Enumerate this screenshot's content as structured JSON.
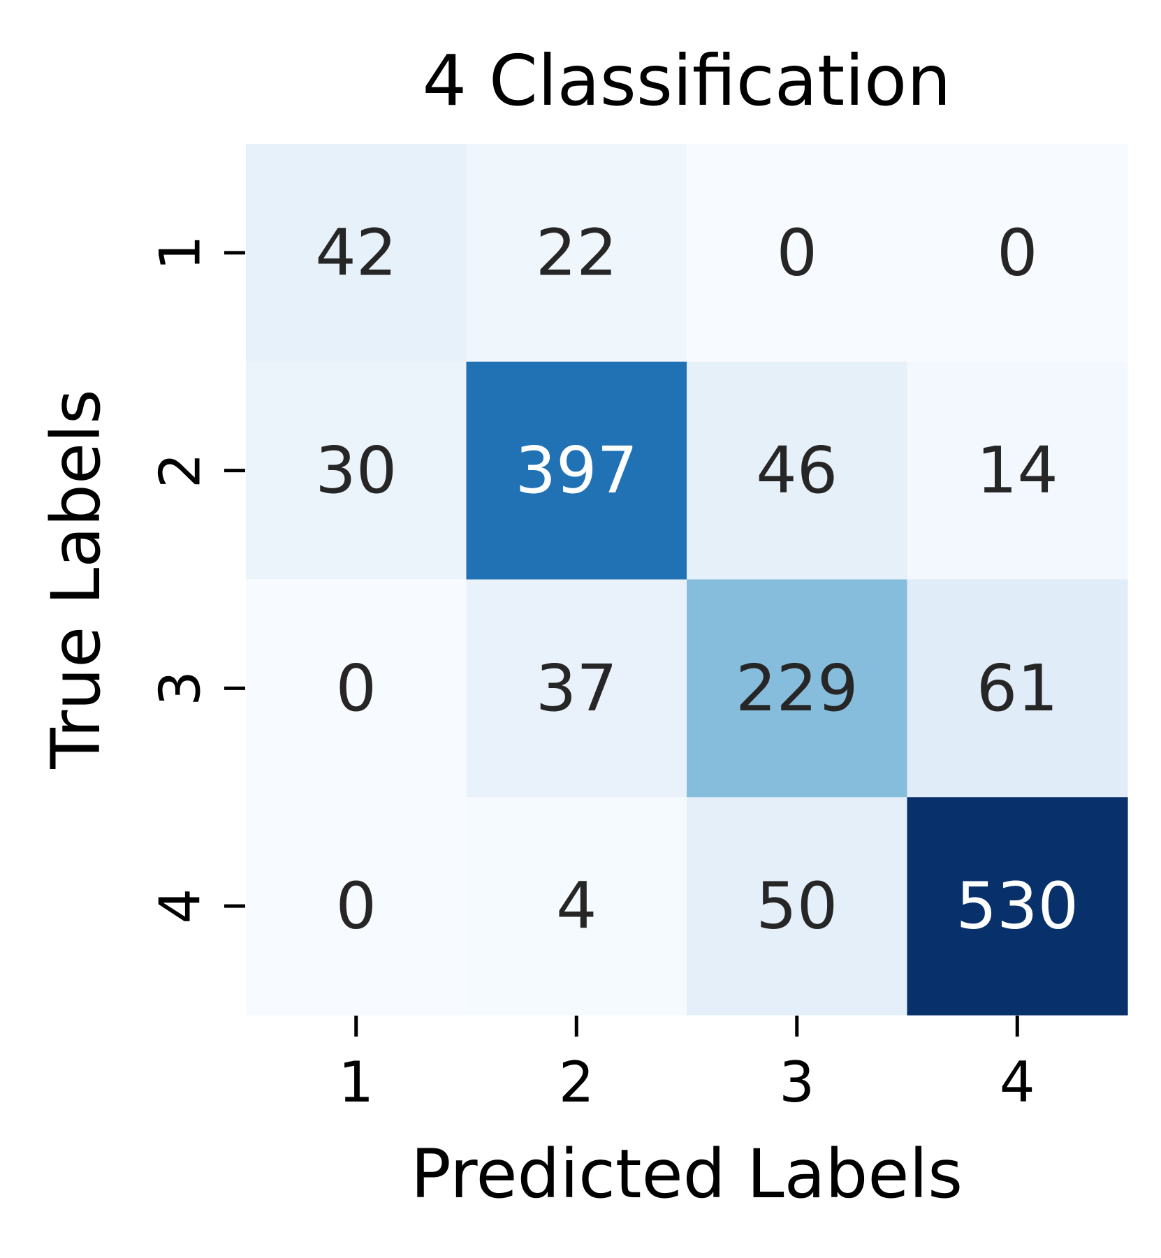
{
  "chart_data": {
    "type": "heatmap",
    "title": "4 Classification",
    "xlabel": "Predicted Labels",
    "ylabel": "True Labels",
    "x_categories": [
      "1",
      "2",
      "3",
      "4"
    ],
    "y_categories": [
      "1",
      "2",
      "3",
      "4"
    ],
    "values": [
      [
        42,
        22,
        0,
        0
      ],
      [
        30,
        397,
        46,
        14
      ],
      [
        0,
        37,
        229,
        61
      ],
      [
        0,
        4,
        50,
        530
      ]
    ],
    "colormap": "Blues",
    "colorbar": false,
    "value_range": [
      0,
      530
    ],
    "annotations": true
  },
  "colors": {
    "text_dark": "#262626",
    "text_light": "#ffffff",
    "axis_text": "#000000",
    "tick": "#000000"
  }
}
